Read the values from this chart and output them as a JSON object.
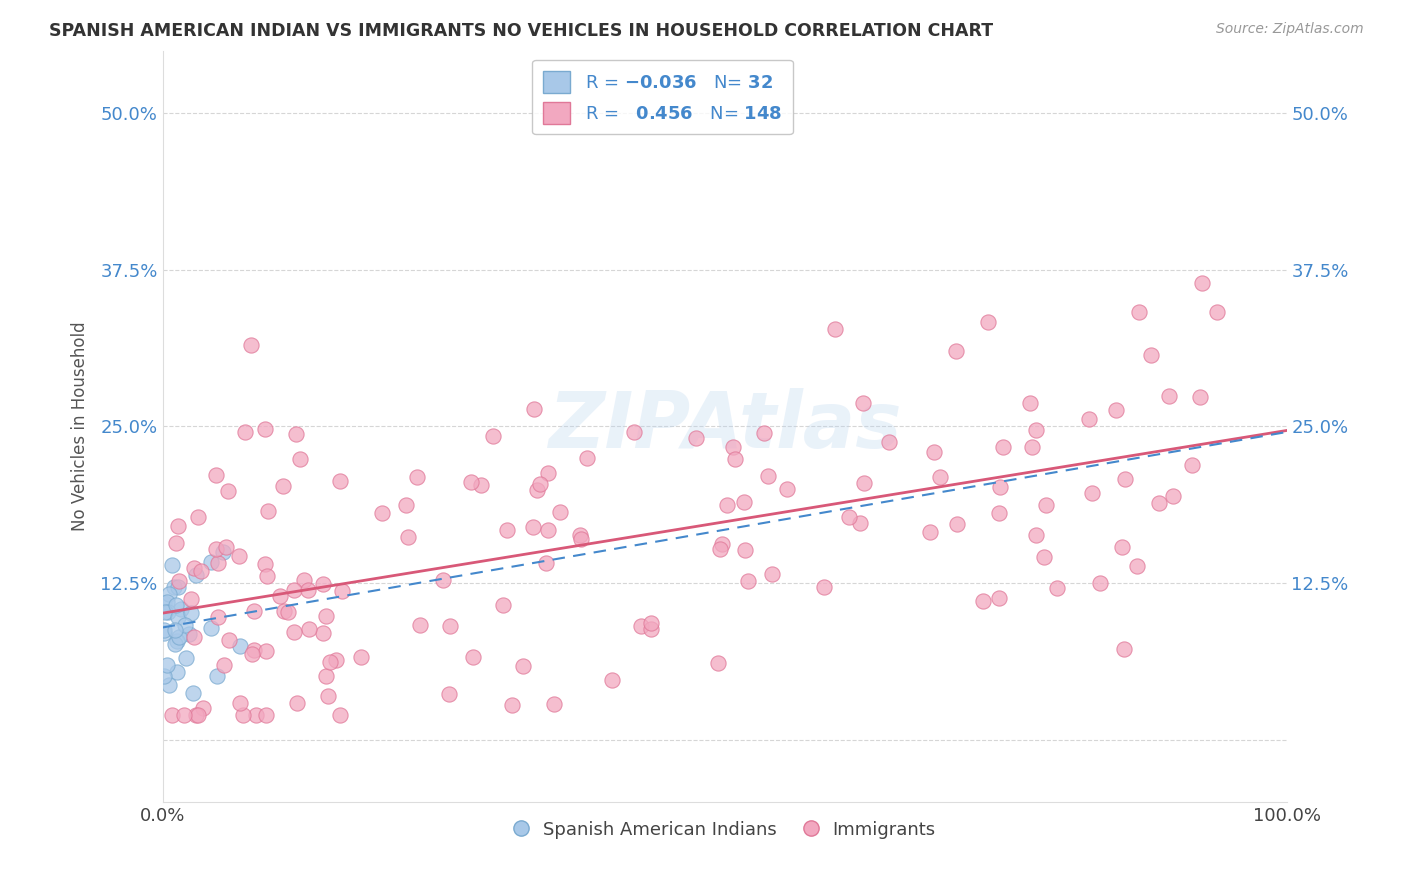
{
  "title": "SPANISH AMERICAN INDIAN VS IMMIGRANTS NO VEHICLES IN HOUSEHOLD CORRELATION CHART",
  "source": "Source: ZipAtlas.com",
  "ylabel": "No Vehicles in Household",
  "xlim": [
    0,
    1.0
  ],
  "ylim": [
    -0.05,
    0.55
  ],
  "r_blue": -0.036,
  "n_blue": 32,
  "r_pink": 0.456,
  "n_pink": 148,
  "legend_label_blue": "Spanish American Indians",
  "legend_label_pink": "Immigrants",
  "dot_color_blue": "#a8c8e8",
  "dot_color_pink": "#f2a8c0",
  "dot_edge_blue": "#7aaad0",
  "dot_edge_pink": "#e07898",
  "line_color_blue": "#4488cc",
  "line_color_pink": "#d85878",
  "background_color": "#ffffff",
  "grid_color": "#cccccc"
}
